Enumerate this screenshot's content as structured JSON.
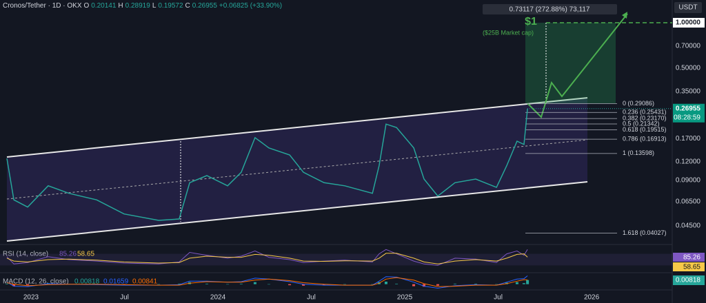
{
  "chart_data": {
    "type": "line",
    "title": "Cronos/Tether · 1D · OKX",
    "ohlc": [
      {
        "label": "O",
        "value": 0.20141
      },
      {
        "label": "H",
        "value": 0.28919
      },
      {
        "label": "L",
        "value": 0.19572
      },
      {
        "label": "C",
        "value": 0.26955
      }
    ],
    "change": "+0.06825 (+33.90%)",
    "currency": "USDT",
    "countdown": "08:28:59",
    "color": "#26a69a",
    "log_scale": true,
    "grid": false,
    "x": [
      2022.871,
      2022.908,
      2022.982,
      2023.092,
      2023.203,
      2023.351,
      2023.498,
      2023.683,
      2023.793,
      2023.849,
      2023.941,
      2024.052,
      2024.125,
      2024.199,
      2024.273,
      2024.384,
      2024.458,
      2024.568,
      2024.679,
      2024.827,
      2024.863,
      2024.9,
      2024.956,
      2025.048,
      2025.103,
      2025.177,
      2025.269,
      2025.38,
      2025.491,
      2025.546,
      2025.601,
      2025.638,
      2025.657
    ],
    "values": [
      0.126,
      0.067,
      0.06,
      0.083,
      0.074,
      0.067,
      0.054,
      0.049,
      0.05,
      0.087,
      0.097,
      0.083,
      0.102,
      0.173,
      0.148,
      0.133,
      0.102,
      0.087,
      0.083,
      0.074,
      0.113,
      0.213,
      0.202,
      0.148,
      0.092,
      0.071,
      0.087,
      0.092,
      0.081,
      0.113,
      0.164,
      0.156,
      0.269
    ],
    "xlim": [
      2022.834,
      2026.413
    ],
    "xticks": [
      {
        "value": 2023,
        "label": "2023"
      },
      {
        "value": 2023.5,
        "label": "Jul"
      },
      {
        "value": 2024,
        "label": "2024"
      },
      {
        "value": 2024.5,
        "label": "Jul"
      },
      {
        "value": 2025,
        "label": "2025"
      },
      {
        "value": 2025.5,
        "label": "Jul"
      },
      {
        "value": 2026,
        "label": "2026"
      }
    ],
    "ylim": [
      0.0339,
      1.415
    ],
    "yticks": [
      {
        "value": 1,
        "label": "1.00000"
      },
      {
        "value": 0.7,
        "label": "0.70000"
      },
      {
        "value": 0.5,
        "label": "0.50000"
      },
      {
        "value": 0.35,
        "label": "0.35000"
      },
      {
        "value": 0.17,
        "label": "0.17000"
      },
      {
        "value": 0.12,
        "label": "0.12000"
      },
      {
        "value": 0.09,
        "label": "0.09000"
      },
      {
        "value": 0.065,
        "label": "0.06500"
      },
      {
        "value": 0.045,
        "label": "0.04500"
      }
    ],
    "annotations": {
      "target_label": "$1",
      "target_note": "($25B Market cap)",
      "projection": "0.73117 (272.88%) 73,117"
    },
    "fib": [
      {
        "value": 0.29086,
        "label": "0 (0.29086)"
      },
      {
        "value": 0.25431,
        "label": "0.236 (0.25431)"
      },
      {
        "value": 0.2317,
        "label": "0.382 (0.23170)"
      },
      {
        "value": 0.21342,
        "label": "0.5 (0.21342)"
      },
      {
        "value": 0.19515,
        "label": "0.618 (0.19515)"
      },
      {
        "value": 0.16913,
        "label": "0.786 (0.16913)"
      },
      {
        "value": 0.13598,
        "label": "1 (0.13598)"
      },
      {
        "value": 0.04027,
        "label": "1.618 (0.04027)"
      }
    ],
    "rsi": {
      "title": "RSI (14, close)",
      "ylim": [
        0,
        100
      ],
      "color": "#7e57c2",
      "ma_color": "#f7c948",
      "values": [
        60,
        35,
        40,
        60,
        50,
        45,
        38,
        35,
        42,
        75,
        65,
        55,
        62,
        80,
        58,
        50,
        40,
        45,
        48,
        42,
        70,
        85,
        70,
        45,
        35,
        30,
        55,
        52,
        40,
        70,
        80,
        65,
        85.26
      ],
      "ma_values": [
        55,
        45,
        42,
        50,
        52,
        48,
        42,
        38,
        40,
        55,
        62,
        58,
        58,
        68,
        65,
        55,
        45,
        44,
        46,
        45,
        55,
        72,
        72,
        55,
        42,
        35,
        45,
        50,
        45,
        55,
        68,
        70,
        58.65
      ]
    },
    "macd": {
      "title": "MACD (12, 26, close)",
      "ylim": [
        -0.01,
        0.02
      ],
      "hist_color": "#26a69a",
      "macd_color": "#2962ff",
      "signal_color": "#ff6d00",
      "hist": [
        0.001,
        -0.004,
        -0.002,
        0.002,
        0,
        -0.001,
        -0.001,
        0,
        0.001,
        0.004,
        0.001,
        0,
        0.001,
        0.004,
        0,
        -0.002,
        -0.003,
        -0.002,
        0,
        0,
        0.004,
        0.005,
        0.001,
        -0.004,
        -0.005,
        -0.003,
        0.001,
        0.001,
        0,
        0.003,
        0.004,
        0.002,
        0.00818
      ],
      "macd": [
        0.004,
        -0.004,
        -0.005,
        0.001,
        0,
        -0.001,
        -0.002,
        -0.002,
        -0.001,
        0.006,
        0.006,
        0.004,
        0.005,
        0.012,
        0.01,
        0.005,
        0,
        -0.002,
        -0.002,
        -0.002,
        0.006,
        0.015,
        0.014,
        0.004,
        -0.004,
        -0.008,
        -0.003,
        -0.001,
        -0.002,
        0.004,
        0.01,
        0.011,
        0.01659
      ],
      "signal": [
        0.003,
        0,
        -0.003,
        -0.001,
        0,
        0,
        -0.001,
        -0.002,
        -0.002,
        0.002,
        0.005,
        0.004,
        0.004,
        0.008,
        0.01,
        0.007,
        0.003,
        0,
        -0.002,
        -0.002,
        0.002,
        0.01,
        0.013,
        0.008,
        0.001,
        -0.005,
        -0.004,
        -0.002,
        -0.002,
        0.001,
        0.006,
        0.009,
        0.00841
      ]
    }
  }
}
